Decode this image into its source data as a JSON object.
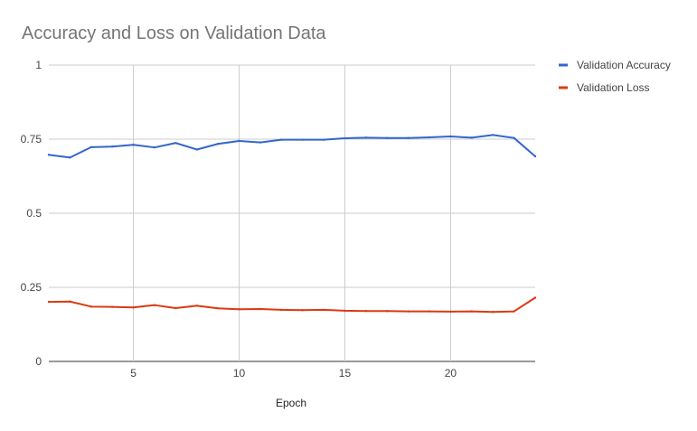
{
  "chart_data": {
    "type": "line",
    "title": "Accuracy and Loss on Validation Data",
    "xlabel": "Epoch",
    "ylabel": "",
    "xlim": [
      1,
      24
    ],
    "ylim": [
      0,
      1
    ],
    "xticks": [
      5,
      10,
      15,
      20
    ],
    "yticks": [
      0,
      0.25,
      0.5,
      0.75,
      1
    ],
    "ytick_labels": [
      "0",
      "0.25",
      "0.5",
      "0.75",
      "1"
    ],
    "grid": true,
    "legend_position": "right",
    "x": [
      1,
      2,
      3,
      4,
      5,
      6,
      7,
      8,
      9,
      10,
      11,
      12,
      13,
      14,
      15,
      16,
      17,
      18,
      19,
      20,
      21,
      22,
      23,
      24
    ],
    "series": [
      {
        "name": "Validation Accuracy",
        "color": "#3366cc",
        "values": [
          0.697,
          0.688,
          0.723,
          0.725,
          0.731,
          0.722,
          0.737,
          0.715,
          0.734,
          0.744,
          0.739,
          0.748,
          0.748,
          0.748,
          0.753,
          0.755,
          0.754,
          0.754,
          0.756,
          0.759,
          0.755,
          0.764,
          0.754,
          0.692
        ]
      },
      {
        "name": "Validation Loss",
        "color": "#dc3912",
        "values": [
          0.201,
          0.202,
          0.185,
          0.184,
          0.182,
          0.19,
          0.18,
          0.188,
          0.179,
          0.176,
          0.177,
          0.174,
          0.173,
          0.174,
          0.171,
          0.17,
          0.17,
          0.169,
          0.169,
          0.168,
          0.169,
          0.167,
          0.169,
          0.215
        ]
      }
    ]
  }
}
